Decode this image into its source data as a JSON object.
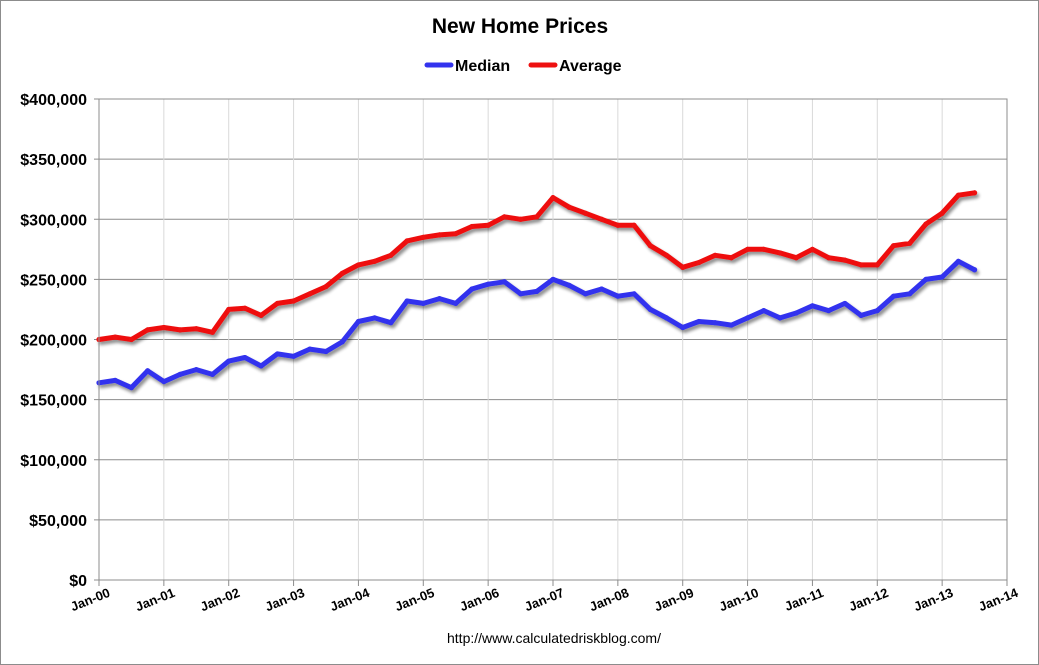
{
  "chart_data": {
    "type": "line",
    "title": "New Home Prices",
    "source": "http://www.calculatedriskblog.com/",
    "legend_position": "top-center",
    "grid": true,
    "ylim": [
      0,
      400000
    ],
    "yticks": [
      {
        "value": 0,
        "label": "$0"
      },
      {
        "value": 50000,
        "label": "$50,000"
      },
      {
        "value": 100000,
        "label": "$100,000"
      },
      {
        "value": 150000,
        "label": "$150,000"
      },
      {
        "value": 200000,
        "label": "$200,000"
      },
      {
        "value": 250000,
        "label": "$250,000"
      },
      {
        "value": 300000,
        "label": "$300,000"
      },
      {
        "value": 350000,
        "label": "$350,000"
      },
      {
        "value": 400000,
        "label": "$400,000"
      }
    ],
    "xlim": [
      "2000-01",
      "2014-01"
    ],
    "xticks": [
      {
        "date": "2000-01",
        "label": "Jan-00"
      },
      {
        "date": "2001-01",
        "label": "Jan-01"
      },
      {
        "date": "2002-01",
        "label": "Jan-02"
      },
      {
        "date": "2003-01",
        "label": "Jan-03"
      },
      {
        "date": "2004-01",
        "label": "Jan-04"
      },
      {
        "date": "2005-01",
        "label": "Jan-05"
      },
      {
        "date": "2006-01",
        "label": "Jan-06"
      },
      {
        "date": "2007-01",
        "label": "Jan-07"
      },
      {
        "date": "2008-01",
        "label": "Jan-08"
      },
      {
        "date": "2009-01",
        "label": "Jan-09"
      },
      {
        "date": "2010-01",
        "label": "Jan-10"
      },
      {
        "date": "2011-01",
        "label": "Jan-11"
      },
      {
        "date": "2012-01",
        "label": "Jan-12"
      },
      {
        "date": "2013-01",
        "label": "Jan-13"
      },
      {
        "date": "2014-01",
        "label": "Jan-14"
      }
    ],
    "series": [
      {
        "name": "Median",
        "color": "#3333ee",
        "points": [
          [
            "2000-01",
            164000
          ],
          [
            "2000-04",
            166000
          ],
          [
            "2000-07",
            160000
          ],
          [
            "2000-10",
            174000
          ],
          [
            "2001-01",
            165000
          ],
          [
            "2001-04",
            171000
          ],
          [
            "2001-07",
            175000
          ],
          [
            "2001-10",
            171000
          ],
          [
            "2002-01",
            182000
          ],
          [
            "2002-04",
            185000
          ],
          [
            "2002-07",
            178000
          ],
          [
            "2002-10",
            188000
          ],
          [
            "2003-01",
            186000
          ],
          [
            "2003-04",
            192000
          ],
          [
            "2003-07",
            190000
          ],
          [
            "2003-10",
            198000
          ],
          [
            "2004-01",
            215000
          ],
          [
            "2004-04",
            218000
          ],
          [
            "2004-07",
            214000
          ],
          [
            "2004-10",
            232000
          ],
          [
            "2005-01",
            230000
          ],
          [
            "2005-04",
            234000
          ],
          [
            "2005-07",
            230000
          ],
          [
            "2005-10",
            242000
          ],
          [
            "2006-01",
            246000
          ],
          [
            "2006-04",
            248000
          ],
          [
            "2006-07",
            238000
          ],
          [
            "2006-10",
            240000
          ],
          [
            "2007-01",
            250000
          ],
          [
            "2007-04",
            245000
          ],
          [
            "2007-07",
            238000
          ],
          [
            "2007-10",
            242000
          ],
          [
            "2008-01",
            236000
          ],
          [
            "2008-04",
            238000
          ],
          [
            "2008-07",
            225000
          ],
          [
            "2008-10",
            218000
          ],
          [
            "2009-01",
            210000
          ],
          [
            "2009-04",
            215000
          ],
          [
            "2009-07",
            214000
          ],
          [
            "2009-10",
            212000
          ],
          [
            "2010-01",
            218000
          ],
          [
            "2010-04",
            224000
          ],
          [
            "2010-07",
            218000
          ],
          [
            "2010-10",
            222000
          ],
          [
            "2011-01",
            228000
          ],
          [
            "2011-04",
            224000
          ],
          [
            "2011-07",
            230000
          ],
          [
            "2011-10",
            220000
          ],
          [
            "2012-01",
            224000
          ],
          [
            "2012-04",
            236000
          ],
          [
            "2012-07",
            238000
          ],
          [
            "2012-10",
            250000
          ],
          [
            "2013-01",
            252000
          ],
          [
            "2013-04",
            265000
          ],
          [
            "2013-07",
            258000
          ]
        ]
      },
      {
        "name": "Average",
        "color": "#ee1111",
        "points": [
          [
            "2000-01",
            200000
          ],
          [
            "2000-04",
            202000
          ],
          [
            "2000-07",
            200000
          ],
          [
            "2000-10",
            208000
          ],
          [
            "2001-01",
            210000
          ],
          [
            "2001-04",
            208000
          ],
          [
            "2001-07",
            209000
          ],
          [
            "2001-10",
            206000
          ],
          [
            "2002-01",
            225000
          ],
          [
            "2002-04",
            226000
          ],
          [
            "2002-07",
            220000
          ],
          [
            "2002-10",
            230000
          ],
          [
            "2003-01",
            232000
          ],
          [
            "2003-04",
            238000
          ],
          [
            "2003-07",
            244000
          ],
          [
            "2003-10",
            255000
          ],
          [
            "2004-01",
            262000
          ],
          [
            "2004-04",
            265000
          ],
          [
            "2004-07",
            270000
          ],
          [
            "2004-10",
            282000
          ],
          [
            "2005-01",
            285000
          ],
          [
            "2005-04",
            287000
          ],
          [
            "2005-07",
            288000
          ],
          [
            "2005-10",
            294000
          ],
          [
            "2006-01",
            295000
          ],
          [
            "2006-04",
            302000
          ],
          [
            "2006-07",
            300000
          ],
          [
            "2006-10",
            302000
          ],
          [
            "2007-01",
            318000
          ],
          [
            "2007-04",
            310000
          ],
          [
            "2007-07",
            305000
          ],
          [
            "2007-10",
            300000
          ],
          [
            "2008-01",
            295000
          ],
          [
            "2008-04",
            295000
          ],
          [
            "2008-07",
            278000
          ],
          [
            "2008-10",
            270000
          ],
          [
            "2009-01",
            260000
          ],
          [
            "2009-04",
            264000
          ],
          [
            "2009-07",
            270000
          ],
          [
            "2009-10",
            268000
          ],
          [
            "2010-01",
            275000
          ],
          [
            "2010-04",
            275000
          ],
          [
            "2010-07",
            272000
          ],
          [
            "2010-10",
            268000
          ],
          [
            "2011-01",
            275000
          ],
          [
            "2011-04",
            268000
          ],
          [
            "2011-07",
            266000
          ],
          [
            "2011-10",
            262000
          ],
          [
            "2012-01",
            262000
          ],
          [
            "2012-04",
            278000
          ],
          [
            "2012-07",
            280000
          ],
          [
            "2012-10",
            296000
          ],
          [
            "2013-01",
            305000
          ],
          [
            "2013-04",
            320000
          ],
          [
            "2013-07",
            322000
          ]
        ]
      }
    ]
  }
}
